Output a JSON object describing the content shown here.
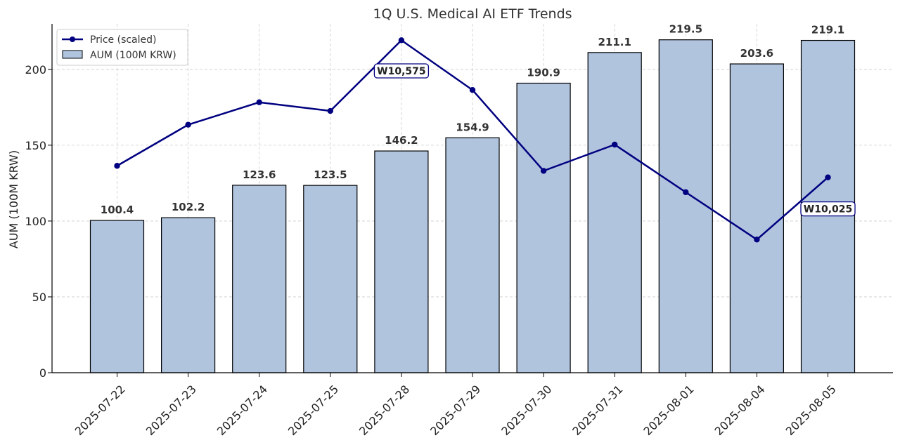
{
  "chart_data": {
    "type": "bar",
    "title": "1Q U.S. Medical AI ETF Trends",
    "xlabel": "",
    "ylabel": "AUM (100M KRW)",
    "ylim": [
      0,
      230
    ],
    "yticks": [
      0,
      50,
      100,
      150,
      200
    ],
    "grid": true,
    "legend_position": "top-left",
    "categories": [
      "2025-07-22",
      "2025-07-23",
      "2025-07-24",
      "2025-07-25",
      "2025-07-28",
      "2025-07-29",
      "2025-07-30",
      "2025-07-31",
      "2025-08-01",
      "2025-08-04",
      "2025-08-05"
    ],
    "series": [
      {
        "name": "AUM (100M KRW)",
        "type": "bar",
        "color": "#b0c4de",
        "values": [
          100.4,
          102.2,
          123.6,
          123.5,
          146.2,
          154.9,
          190.9,
          211.1,
          219.5,
          203.6,
          219.1
        ],
        "labels": [
          "100.4",
          "102.2",
          "123.6",
          "123.5",
          "146.2",
          "154.9",
          "190.9",
          "211.1",
          "219.5",
          "203.6",
          "219.1"
        ]
      },
      {
        "name": "Price (scaled)",
        "type": "line",
        "color": "#000080",
        "values": [
          136.4,
          163.5,
          178.3,
          172.6,
          219.2,
          186.4,
          133.1,
          150.4,
          119.0,
          87.8,
          128.8
        ]
      }
    ],
    "annotations": [
      {
        "text": "W10,575",
        "category": "2025-07-28",
        "value": 199
      },
      {
        "text": "W10,025",
        "category": "2025-08-05",
        "value": 108
      }
    ]
  }
}
